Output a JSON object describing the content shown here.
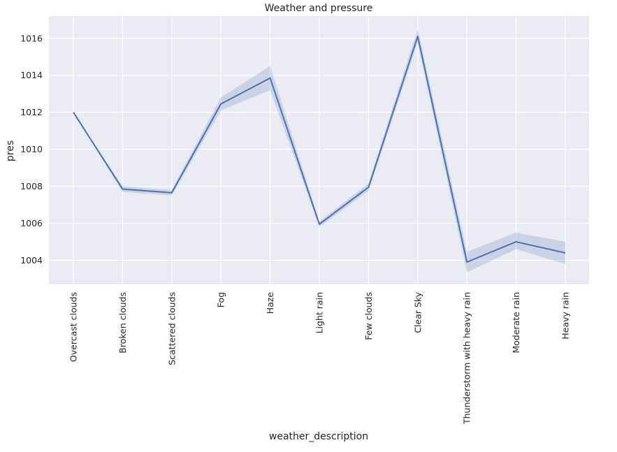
{
  "chart_data": {
    "type": "line",
    "title": "Weather and pressure",
    "xlabel": "weather_description",
    "ylabel": "pres",
    "categories": [
      "Overcast clouds",
      "Broken clouds",
      "Scattered clouds",
      "Fog",
      "Haze",
      "Light rain",
      "Few clouds",
      "Clear Sky",
      "Thunderstorm with heavy rain",
      "Moderate rain",
      "Heavy rain"
    ],
    "series": [
      {
        "values": [
          1012.0,
          1007.85,
          1007.65,
          1012.45,
          1013.85,
          1005.95,
          1007.95,
          1016.1,
          1003.9,
          1005.0,
          1004.4
        ],
        "ci_lower": [
          1012.0,
          1007.7,
          1007.5,
          1012.1,
          1013.2,
          1005.8,
          1007.75,
          1015.8,
          1003.35,
          1004.6,
          1003.8
        ],
        "ci_upper": [
          1012.0,
          1008.0,
          1007.8,
          1012.8,
          1014.5,
          1006.1,
          1008.15,
          1016.5,
          1004.45,
          1005.5,
          1005.0
        ],
        "color": "#4c72b0"
      }
    ],
    "yticks": [
      "1004",
      "1006",
      "1008",
      "1010",
      "1012",
      "1014",
      "1016"
    ],
    "ylim": [
      1002.7,
      1017.2
    ],
    "grid": true,
    "style": {
      "plot_background": "#eaeaf2",
      "grid_color": "#ffffff",
      "line_color": "#4c72b0",
      "band_color": "#4c72b0"
    }
  }
}
